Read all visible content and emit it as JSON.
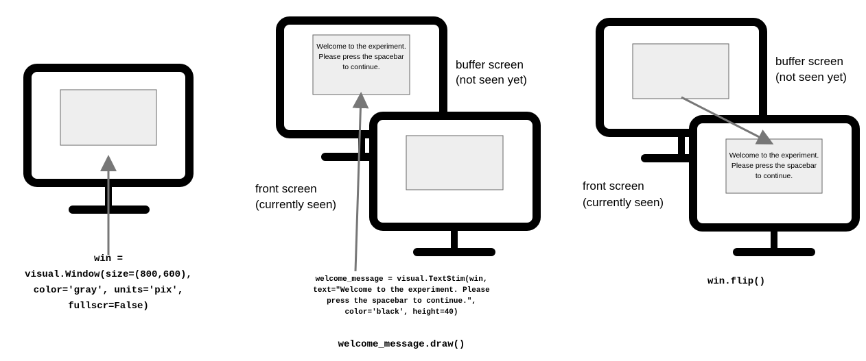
{
  "panels": [
    {
      "code_lines": [
        "win =",
        "visual.Window(size=(800,600),",
        "color='gray', units='pix',",
        "fullscr=False)"
      ]
    },
    {
      "screen_message_lines": [
        "Welcome to the experiment.",
        "Please press the spacebar",
        "to continue."
      ],
      "buffer_label_lines": [
        "buffer screen",
        "(not seen yet)"
      ],
      "front_label_lines": [
        "front screen",
        "(currently seen)"
      ],
      "code_lines": [
        "welcome_message = visual.TextStim(win,",
        "text=\"Welcome to the experiment. Please",
        "press the spacebar to continue.\",",
        "color='black', height=40)"
      ],
      "call": "welcome_message.draw()"
    },
    {
      "screen_message_lines": [
        "Welcome to the experiment.",
        "Please press the spacebar",
        "to continue."
      ],
      "buffer_label_lines": [
        "buffer screen",
        "(not seen yet)"
      ],
      "front_label_lines": [
        "front screen",
        "(currently seen)"
      ],
      "call": "win.flip()"
    }
  ],
  "colors": {
    "monitor_stroke": "#000000",
    "screen_fill": "#eeeeee",
    "screen_border": "#666666",
    "arrow": "#777777"
  }
}
